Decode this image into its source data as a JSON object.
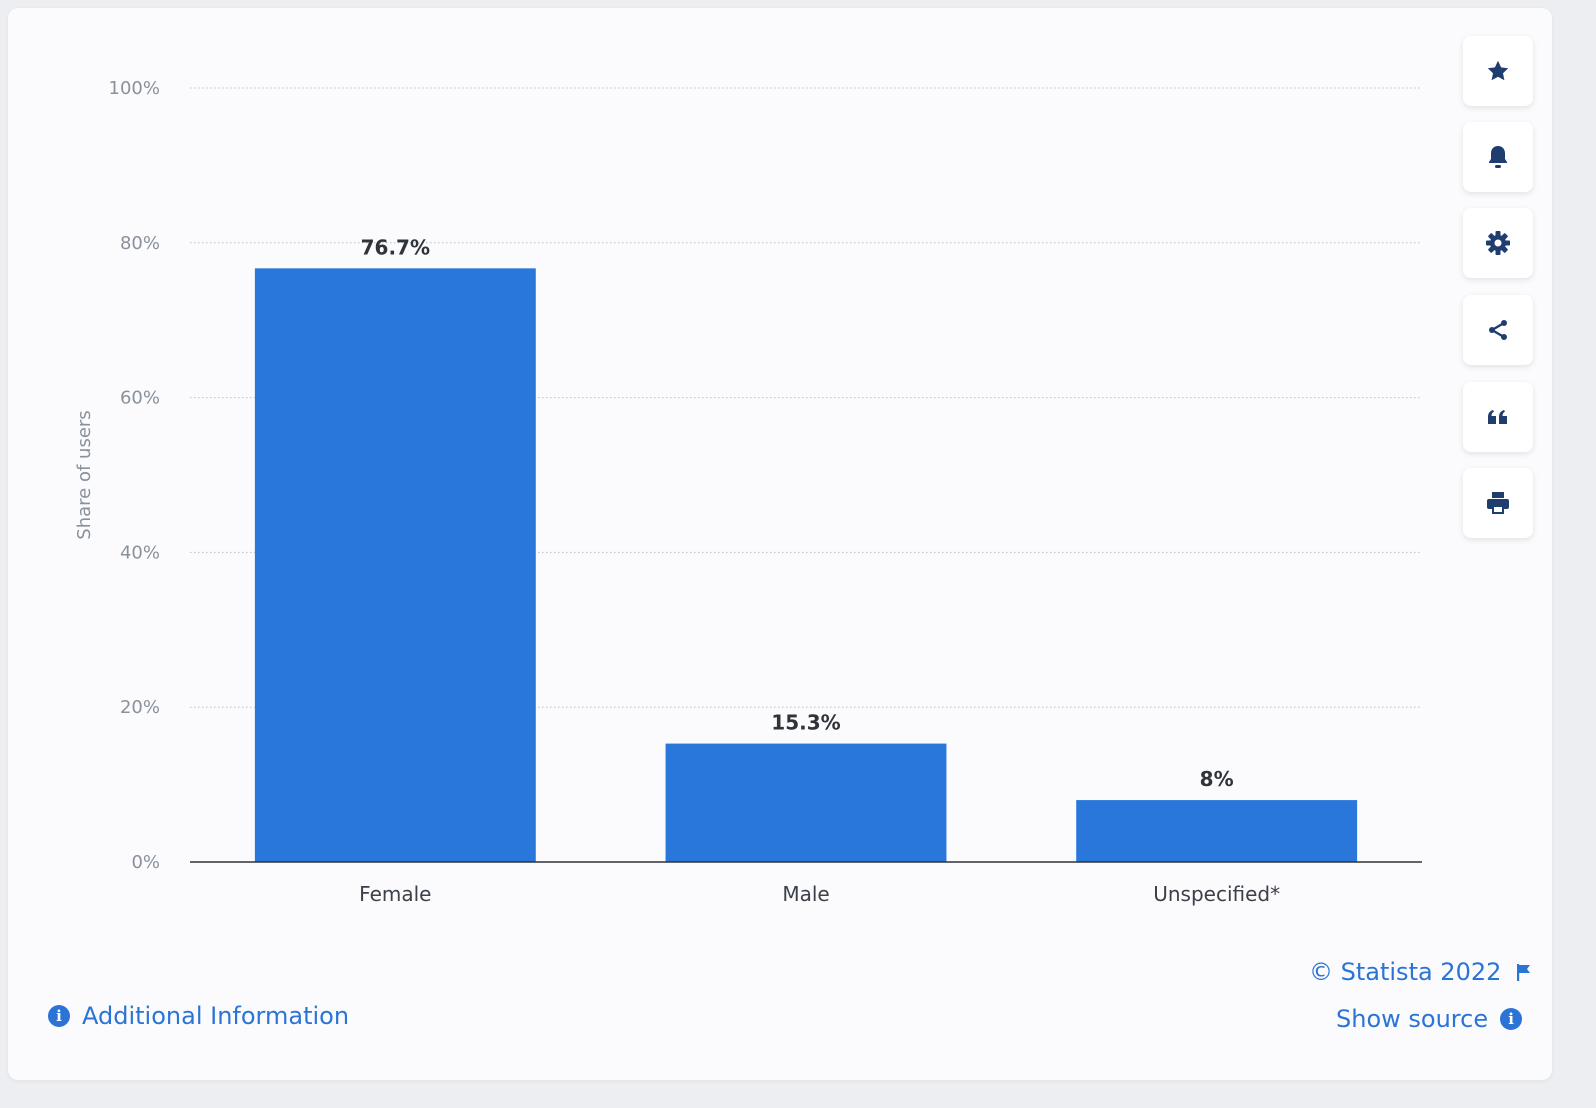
{
  "chart_data": {
    "type": "bar",
    "categories": [
      "Female",
      "Male",
      "Unspecified*"
    ],
    "values": [
      76.7,
      15.3,
      8
    ],
    "data_labels": [
      "76.7%",
      "15.3%",
      "8%"
    ],
    "title": "",
    "xlabel": "",
    "ylabel": "Share of users",
    "ylim": [
      0,
      100
    ],
    "yticks": [
      0,
      20,
      40,
      60,
      80,
      100
    ],
    "ytick_labels": [
      "0%",
      "20%",
      "40%",
      "60%",
      "80%",
      "100%"
    ],
    "grid": true,
    "grid_style": "dotted",
    "bar_color": "#2a77dc"
  },
  "toolbar": {
    "buttons": [
      {
        "name": "favorite",
        "icon": "star-icon"
      },
      {
        "name": "notification",
        "icon": "bell-icon"
      },
      {
        "name": "settings",
        "icon": "gear-icon"
      },
      {
        "name": "share",
        "icon": "share-icon"
      },
      {
        "name": "cite",
        "icon": "quote-icon"
      },
      {
        "name": "print",
        "icon": "print-icon"
      }
    ],
    "icon_color": "#1f3d6e"
  },
  "footer": {
    "copyright": "© Statista 2022",
    "show_source": "Show source",
    "additional_info": "Additional Information",
    "link_color": "#2a74d6"
  }
}
